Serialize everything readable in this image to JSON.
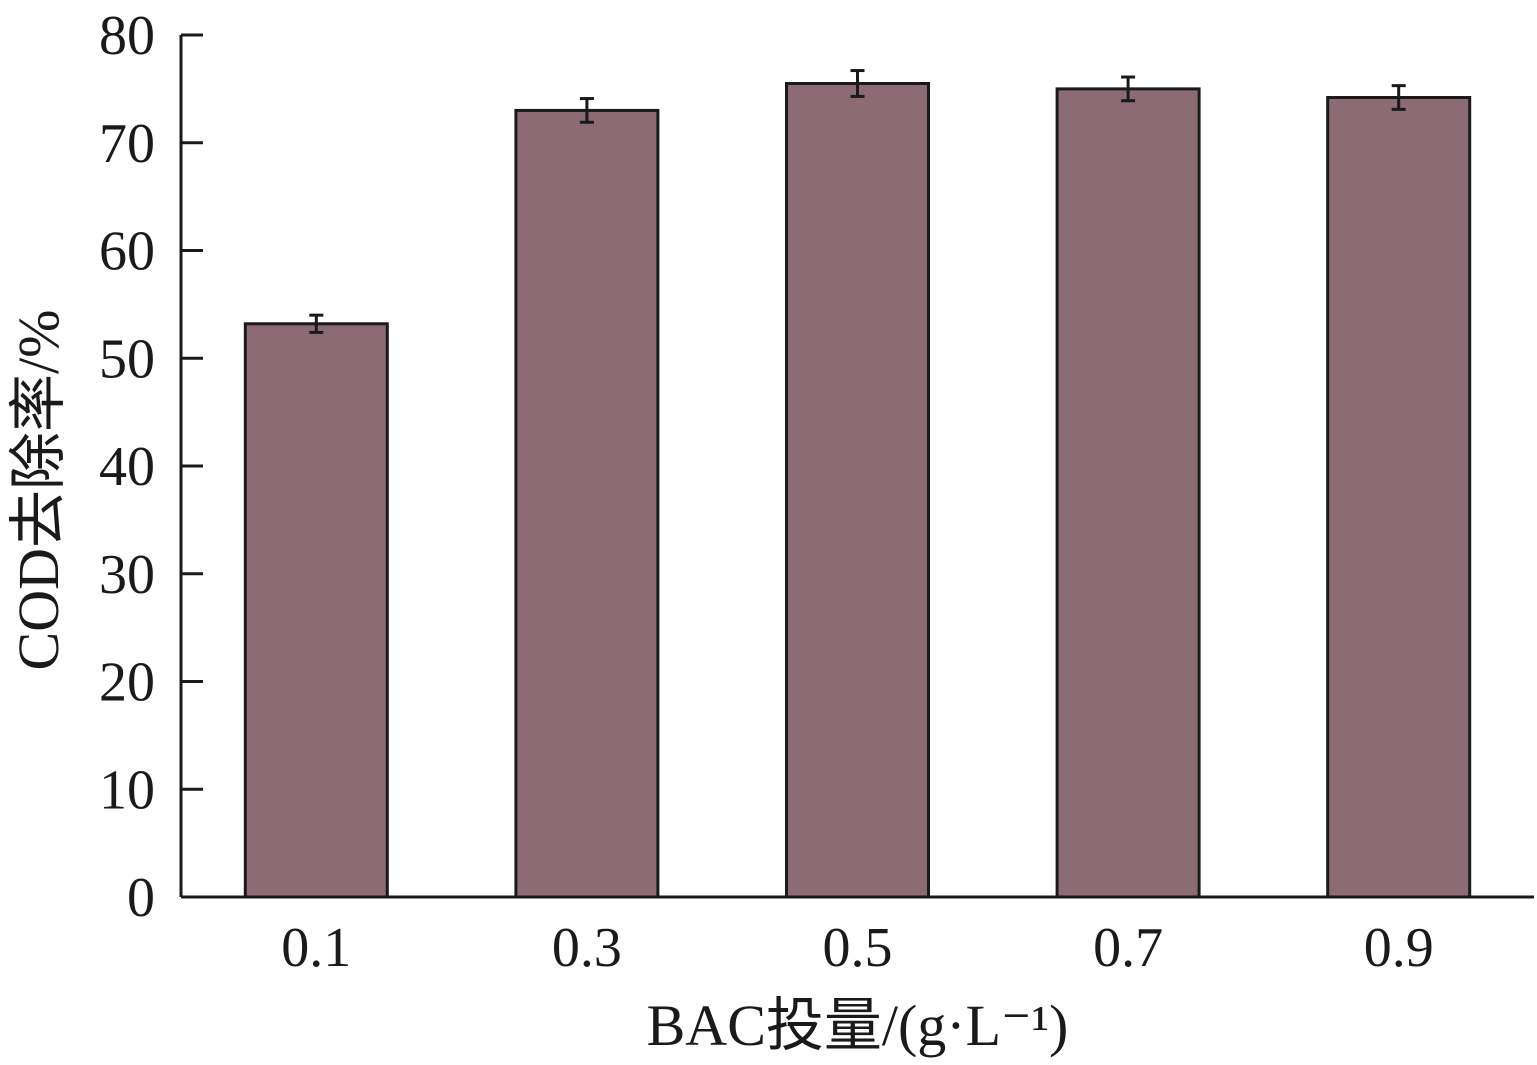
{
  "chart_data": {
    "type": "bar",
    "categories": [
      "0.1",
      "0.3",
      "0.5",
      "0.7",
      "0.9"
    ],
    "values": [
      53.2,
      73.0,
      75.5,
      75.0,
      74.2
    ],
    "errors": [
      0.8,
      1.1,
      1.2,
      1.1,
      1.1
    ],
    "xlabel": "BAC投量/(g·L⁻¹)",
    "ylabel": "COD去除率/%",
    "yticks": [
      "0",
      "10",
      "20",
      "30",
      "40",
      "50",
      "60",
      "70",
      "80"
    ],
    "ylim": [
      0,
      80
    ],
    "grid": false,
    "bar_color": "#8c6b74"
  }
}
